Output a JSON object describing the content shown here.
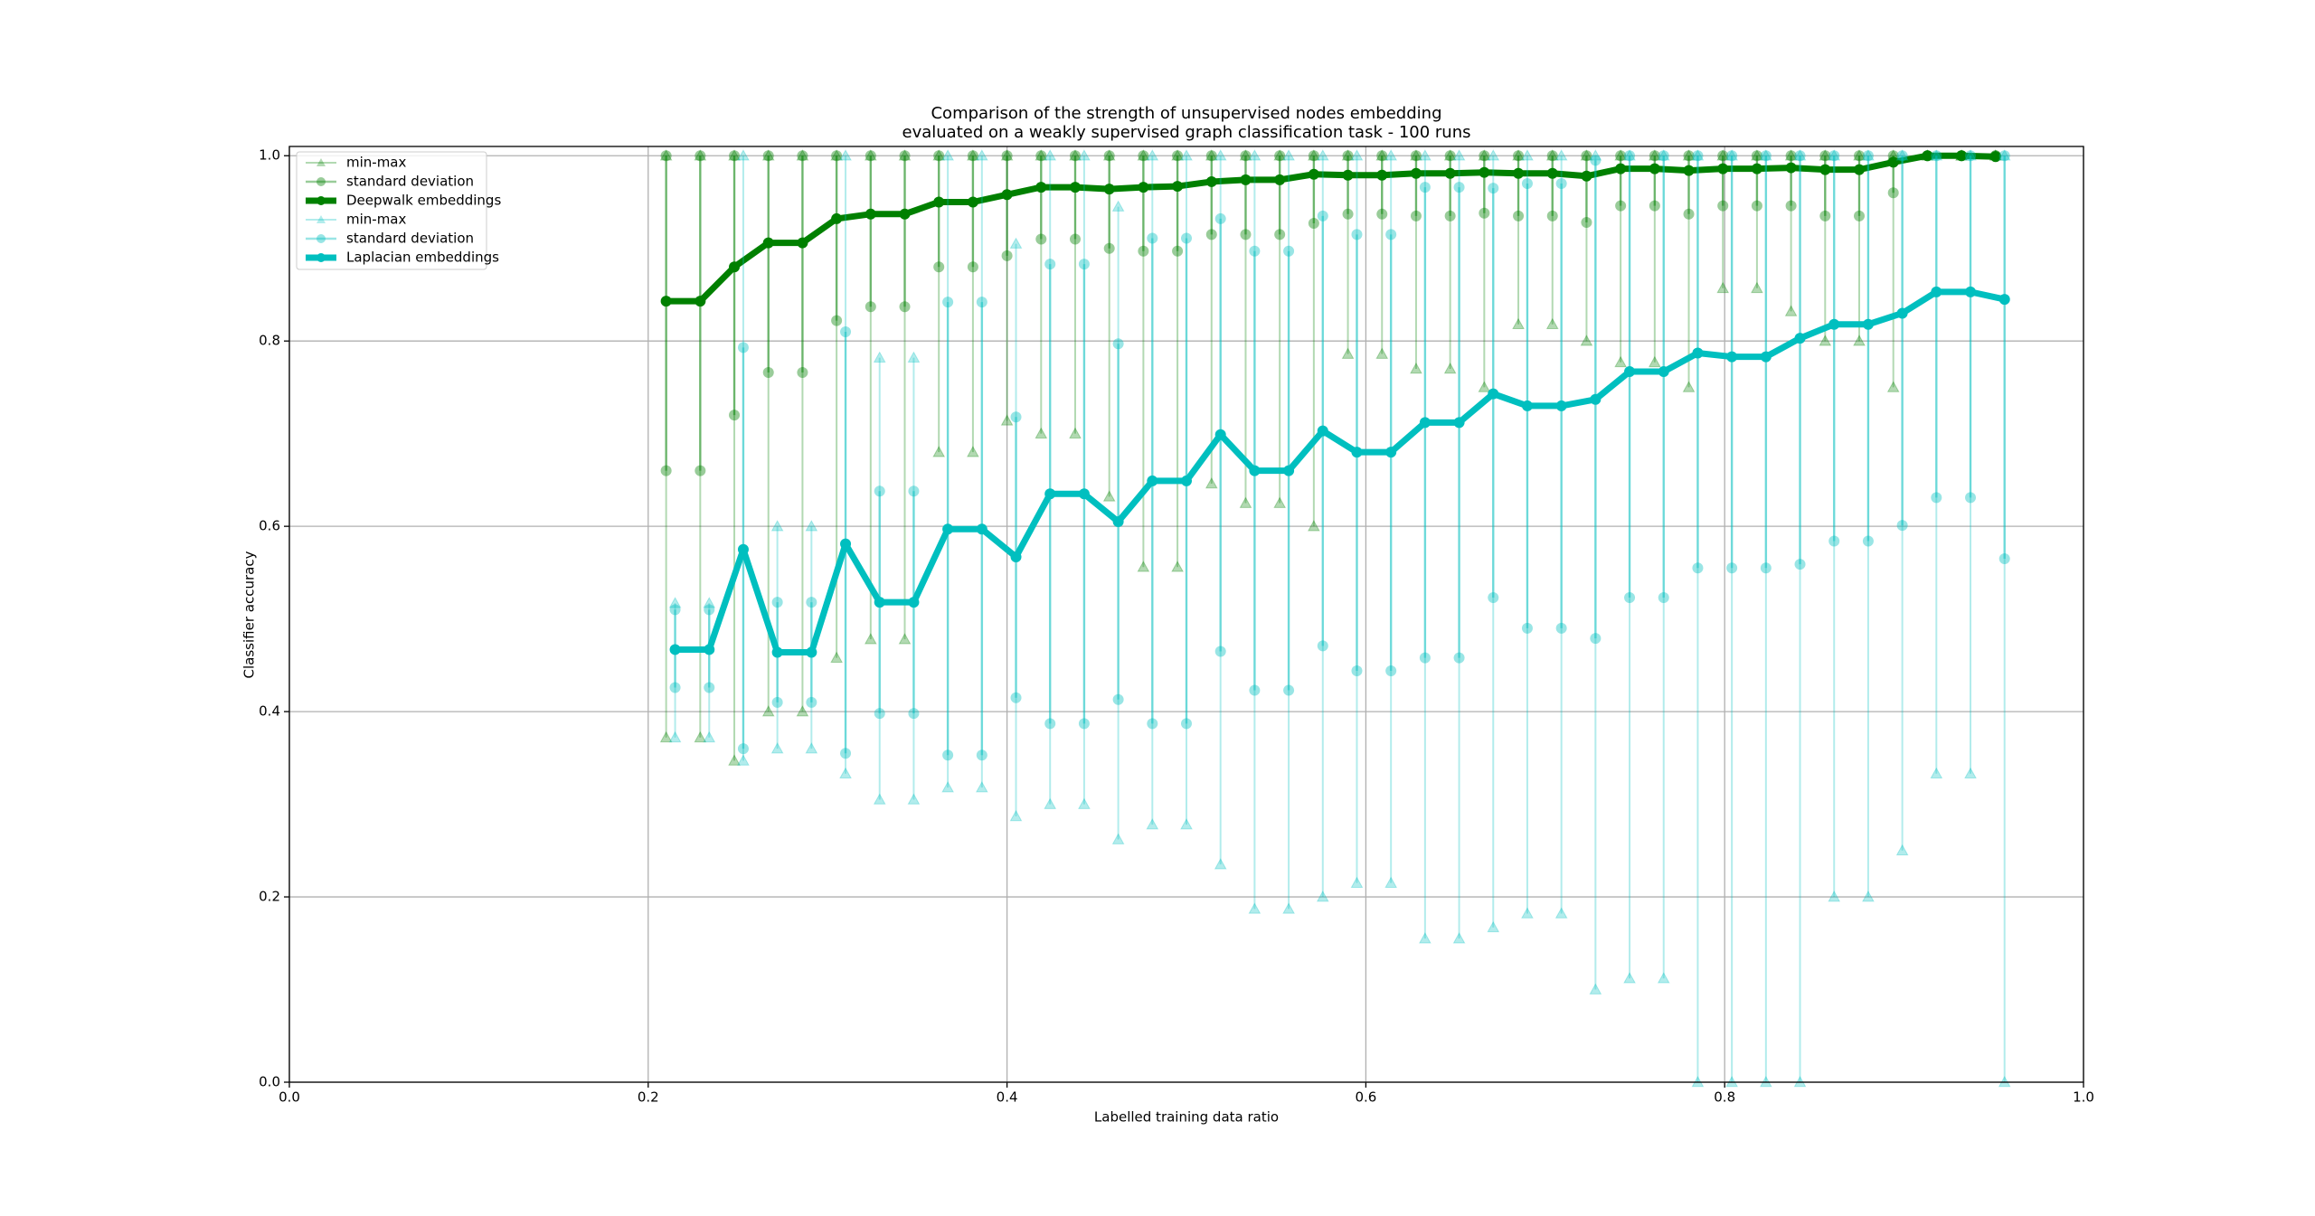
{
  "chart_data": {
    "type": "line",
    "title": [
      "Comparison of the strength of unsupervised nodes embedding",
      "evaluated on a weakly supervised graph classification task - 100 runs"
    ],
    "x_label": "Labelled training data ratio",
    "y_label": "Classifier accuracy",
    "xlim": [
      0,
      1
    ],
    "ylim": [
      0,
      1.01
    ],
    "xticks": [
      {
        "value": 0,
        "label": "0.0"
      },
      0.2,
      0.4,
      0.6,
      0.8,
      {
        "value": 1,
        "label": "1.0"
      }
    ],
    "yticks": [
      {
        "value": 0,
        "label": "0.0"
      },
      0.2,
      0.4,
      0.6,
      0.8,
      {
        "value": 1,
        "label": "1.0"
      }
    ],
    "grid": true,
    "legend": "upper left",
    "series": [
      {
        "name": "Deepwalk embeddings",
        "color": "#008000",
        "minmax_label": "min-max",
        "std_label": "standard deviation",
        "x": [
          0.21,
          0.229,
          0.248,
          0.267,
          0.286,
          0.305,
          0.324,
          0.343,
          0.362,
          0.381,
          0.4,
          0.419,
          0.438,
          0.457,
          0.476,
          0.495,
          0.514,
          0.533,
          0.552,
          0.571,
          0.59,
          0.609,
          0.628,
          0.647,
          0.666,
          0.685,
          0.704,
          0.723,
          0.742,
          0.761,
          0.78,
          0.799,
          0.818,
          0.837,
          0.856,
          0.875,
          0.894,
          0.913,
          0.932,
          0.951
        ],
        "values": [
          0.843,
          0.843,
          0.88,
          0.906,
          0.906,
          0.932,
          0.937,
          0.937,
          0.95,
          0.95,
          0.958,
          0.966,
          0.966,
          0.964,
          0.966,
          0.967,
          0.972,
          0.974,
          0.974,
          0.98,
          0.979,
          0.979,
          0.981,
          0.981,
          0.982,
          0.981,
          0.981,
          0.978,
          0.986,
          0.986,
          0.984,
          0.986,
          0.986,
          0.987,
          0.985,
          0.985,
          0.993,
          1,
          1,
          0.999
        ],
        "std_low": [
          0.66,
          0.66,
          0.72,
          0.766,
          0.766,
          0.822,
          0.837,
          0.837,
          0.88,
          0.88,
          0.892,
          0.91,
          0.91,
          0.9,
          0.897,
          0.897,
          0.915,
          0.915,
          0.915,
          0.927,
          0.937,
          0.937,
          0.935,
          0.935,
          0.938,
          0.935,
          0.935,
          0.928,
          0.946,
          0.946,
          0.937,
          0.946,
          0.946,
          0.946,
          0.935,
          0.935,
          0.96,
          1,
          1,
          1
        ],
        "std_high": [
          1,
          1,
          1,
          1,
          1,
          1,
          1,
          1,
          1,
          1,
          1,
          1,
          1,
          1,
          1,
          1,
          1,
          1,
          1,
          1,
          1,
          1,
          1,
          1,
          1,
          1,
          1,
          1,
          1,
          1,
          1,
          1,
          1,
          1,
          1,
          1,
          1,
          1,
          1,
          1
        ],
        "min": [
          0.372,
          0.372,
          0.347,
          0.4,
          0.4,
          0.458,
          0.478,
          0.478,
          0.68,
          0.68,
          0.714,
          0.7,
          0.7,
          0.632,
          0.556,
          0.556,
          0.646,
          0.625,
          0.625,
          0.6,
          0.786,
          0.786,
          0.77,
          0.77,
          0.75,
          0.818,
          0.818,
          0.8,
          0.777,
          0.777,
          0.75,
          0.857,
          0.857,
          0.832,
          0.8,
          0.8,
          0.75,
          1,
          1,
          1
        ],
        "max": [
          1,
          1,
          1,
          1,
          1,
          1,
          1,
          1,
          1,
          1,
          1,
          1,
          1,
          1,
          1,
          1,
          1,
          1,
          1,
          1,
          1,
          1,
          1,
          1,
          1,
          1,
          1,
          1,
          1,
          1,
          1,
          1,
          1,
          1,
          1,
          1,
          1,
          1,
          1,
          1
        ]
      },
      {
        "name": "Laplacian embeddings",
        "color": "#00bfbf",
        "minmax_label": "min-max",
        "std_label": "standard deviation",
        "x": [
          0.215,
          0.234,
          0.253,
          0.272,
          0.291,
          0.31,
          0.329,
          0.348,
          0.367,
          0.386,
          0.405,
          0.424,
          0.443,
          0.462,
          0.481,
          0.5,
          0.519,
          0.538,
          0.557,
          0.576,
          0.595,
          0.614,
          0.633,
          0.652,
          0.671,
          0.69,
          0.709,
          0.728,
          0.747,
          0.766,
          0.785,
          0.804,
          0.823,
          0.842,
          0.861,
          0.88,
          0.899,
          0.918,
          0.937,
          0.956
        ],
        "values": [
          0.467,
          0.467,
          0.575,
          0.464,
          0.464,
          0.581,
          0.518,
          0.518,
          0.597,
          0.597,
          0.567,
          0.635,
          0.635,
          0.605,
          0.649,
          0.649,
          0.699,
          0.66,
          0.66,
          0.703,
          0.68,
          0.68,
          0.712,
          0.712,
          0.743,
          0.73,
          0.73,
          0.737,
          0.767,
          0.767,
          0.787,
          0.783,
          0.783,
          0.803,
          0.818,
          0.818,
          0.83,
          0.853,
          0.853,
          0.845
        ],
        "std_low": [
          0.426,
          0.426,
          0.36,
          0.41,
          0.41,
          0.355,
          0.398,
          0.398,
          0.353,
          0.353,
          0.415,
          0.387,
          0.387,
          0.413,
          0.387,
          0.387,
          0.465,
          0.423,
          0.423,
          0.471,
          0.444,
          0.444,
          0.458,
          0.458,
          0.523,
          0.49,
          0.49,
          0.479,
          0.523,
          0.523,
          0.555,
          0.555,
          0.555,
          0.559,
          0.584,
          0.584,
          0.601,
          0.631,
          0.631,
          0.565
        ],
        "std_high": [
          0.51,
          0.51,
          0.793,
          0.518,
          0.518,
          0.81,
          0.638,
          0.638,
          0.842,
          0.842,
          0.718,
          0.883,
          0.883,
          0.797,
          0.911,
          0.911,
          0.932,
          0.897,
          0.897,
          0.935,
          0.915,
          0.915,
          0.966,
          0.966,
          0.965,
          0.97,
          0.97,
          0.995,
          1,
          1,
          1,
          1,
          1,
          1,
          1,
          1,
          1,
          1,
          1,
          1
        ],
        "min": [
          0.372,
          0.372,
          0.347,
          0.36,
          0.36,
          0.333,
          0.305,
          0.305,
          0.318,
          0.318,
          0.287,
          0.3,
          0.3,
          0.262,
          0.278,
          0.278,
          0.235,
          0.187,
          0.187,
          0.2,
          0.215,
          0.215,
          0.155,
          0.155,
          0.167,
          0.182,
          0.182,
          0.1,
          0.112,
          0.112,
          0,
          0,
          0,
          0,
          0.2,
          0.2,
          0.25,
          0.333,
          0.333,
          0
        ],
        "max": [
          0.517,
          0.517,
          1,
          0.6,
          0.6,
          1,
          0.782,
          0.782,
          1,
          1,
          0.905,
          1,
          1,
          0.945,
          1,
          1,
          1,
          1,
          1,
          1,
          1,
          1,
          1,
          1,
          1,
          1,
          1,
          1,
          1,
          1,
          1,
          1,
          1,
          1,
          1,
          1,
          1,
          1,
          1,
          1
        ]
      }
    ]
  }
}
